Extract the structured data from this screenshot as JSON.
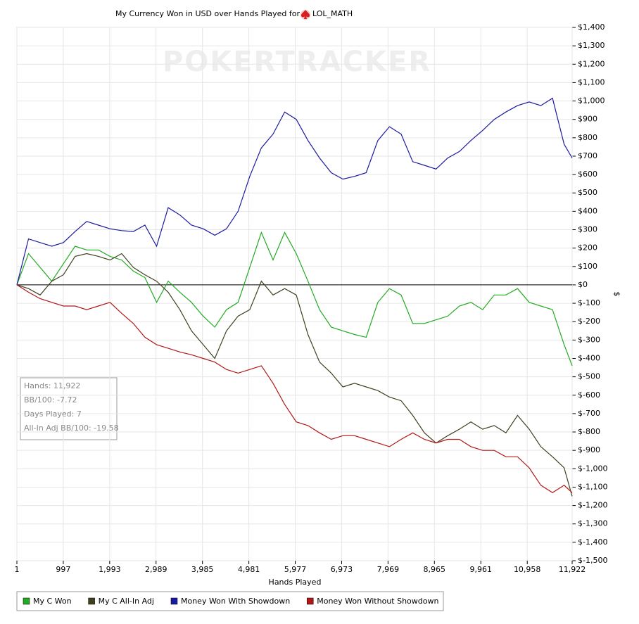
{
  "chart_data": {
    "type": "line",
    "title": "My Currency Won in USD over Hands Played for",
    "player": "LOL_MATH",
    "watermark": "POKERTRACKER",
    "x_label": "Hands Played",
    "y_label": "$",
    "grid": true,
    "xlim": [
      1,
      11922
    ],
    "ylim": [
      -1500,
      1400
    ],
    "xticks": [
      1,
      997,
      {
        "value": 1993,
        "label": "1,993"
      },
      {
        "value": 2989,
        "label": "2,989"
      },
      {
        "value": 3985,
        "label": "3,985"
      },
      {
        "value": 4981,
        "label": "4,981"
      },
      {
        "value": 5977,
        "label": "5,977"
      },
      {
        "value": 6973,
        "label": "6,973"
      },
      {
        "value": 7969,
        "label": "7,969"
      },
      {
        "value": 8965,
        "label": "8,965"
      },
      {
        "value": 9961,
        "label": "9,961"
      },
      {
        "value": 10958,
        "label": "10,958"
      },
      {
        "value": 11922,
        "label": "11,922"
      }
    ],
    "yticks": [
      {
        "value": -1500,
        "label": "$-1,500"
      },
      {
        "value": -1400,
        "label": "$-1,400"
      },
      {
        "value": -1300,
        "label": "$-1,300"
      },
      {
        "value": -1200,
        "label": "$-1,200"
      },
      {
        "value": -1100,
        "label": "$-1,100"
      },
      {
        "value": -1000,
        "label": "$-1,000"
      },
      {
        "value": -900,
        "label": "$-900"
      },
      {
        "value": -800,
        "label": "$-800"
      },
      {
        "value": -700,
        "label": "$-700"
      },
      {
        "value": -600,
        "label": "$-600"
      },
      {
        "value": -500,
        "label": "$-500"
      },
      {
        "value": -400,
        "label": "$-400"
      },
      {
        "value": -300,
        "label": "$-300"
      },
      {
        "value": -200,
        "label": "$-200"
      },
      {
        "value": -100,
        "label": "$-100"
      },
      {
        "value": 0,
        "label": "$0"
      },
      {
        "value": 100,
        "label": "$100"
      },
      {
        "value": 200,
        "label": "$200"
      },
      {
        "value": 300,
        "label": "$300"
      },
      {
        "value": 400,
        "label": "$400"
      },
      {
        "value": 500,
        "label": "$500"
      },
      {
        "value": 600,
        "label": "$600"
      },
      {
        "value": 700,
        "label": "$700"
      },
      {
        "value": 800,
        "label": "$800"
      },
      {
        "value": 900,
        "label": "$900"
      },
      {
        "value": 1000,
        "label": "$1,000"
      },
      {
        "value": 1100,
        "label": "$1,100"
      },
      {
        "value": 1200,
        "label": "$1,200"
      },
      {
        "value": 1300,
        "label": "$1,300"
      },
      {
        "value": 1400,
        "label": "$1,400"
      }
    ],
    "stats": [
      "Hands: 11,922",
      "BB/100: -7.72",
      "Days Played: 7",
      "All-In Adj BB/100: -19.58"
    ],
    "x": [
      1,
      250,
      500,
      750,
      1000,
      1250,
      1500,
      1750,
      2000,
      2250,
      2500,
      2750,
      3000,
      3250,
      3500,
      3750,
      4000,
      4250,
      4500,
      4750,
      5000,
      5250,
      5500,
      5750,
      6000,
      6250,
      6500,
      6750,
      7000,
      7250,
      7500,
      7750,
      8000,
      8250,
      8500,
      8750,
      9000,
      9250,
      9500,
      9750,
      10000,
      10250,
      10500,
      10750,
      11000,
      11250,
      11500,
      11750,
      11922
    ],
    "series": [
      {
        "name": "My C Won",
        "color": "#22aa22",
        "values": [
          0,
          170,
          95,
          20,
          115,
          210,
          190,
          190,
          155,
          135,
          75,
          40,
          -95,
          20,
          -40,
          -95,
          -170,
          -230,
          -135,
          -95,
          95,
          285,
          135,
          285,
          170,
          20,
          -135,
          -230,
          -250,
          -270,
          -285,
          -95,
          -20,
          -55,
          -210,
          -210,
          -190,
          -170,
          -115,
          -95,
          -135,
          -55,
          -55,
          -20,
          -95,
          -115,
          -135,
          -325,
          -440
        ]
      },
      {
        "name": "My C All-In Adj",
        "color": "#404020",
        "values": [
          0,
          -20,
          -55,
          20,
          55,
          155,
          170,
          155,
          135,
          170,
          95,
          55,
          20,
          -40,
          -135,
          -250,
          -325,
          -400,
          -250,
          -170,
          -135,
          20,
          -55,
          -20,
          -55,
          -270,
          -420,
          -480,
          -555,
          -535,
          -555,
          -575,
          -610,
          -630,
          -710,
          -805,
          -860,
          -820,
          -785,
          -745,
          -785,
          -765,
          -805,
          -710,
          -785,
          -880,
          -935,
          -995,
          -1150
        ]
      },
      {
        "name": "Money Won With Showdown",
        "color": "#1a1aa0",
        "values": [
          0,
          250,
          230,
          210,
          230,
          290,
          345,
          325,
          305,
          295,
          290,
          325,
          210,
          420,
          380,
          325,
          305,
          270,
          305,
          400,
          590,
          745,
          820,
          940,
          900,
          785,
          690,
          610,
          575,
          590,
          610,
          785,
          860,
          820,
          670,
          650,
          630,
          690,
          725,
          785,
          840,
          900,
          940,
          975,
          995,
          975,
          1015,
          765,
          690
        ]
      },
      {
        "name": "Money Won Without Showdown",
        "color": "#b01818",
        "values": [
          0,
          -40,
          -75,
          -95,
          -115,
          -115,
          -135,
          -115,
          -95,
          -155,
          -210,
          -285,
          -325,
          -345,
          -365,
          -380,
          -400,
          -420,
          -460,
          -480,
          -460,
          -440,
          -535,
          -650,
          -745,
          -765,
          -805,
          -840,
          -820,
          -820,
          -840,
          -860,
          -880,
          -840,
          -805,
          -840,
          -860,
          -840,
          -840,
          -880,
          -900,
          -900,
          -935,
          -935,
          -995,
          -1090,
          -1130,
          -1090,
          -1130
        ]
      }
    ]
  }
}
